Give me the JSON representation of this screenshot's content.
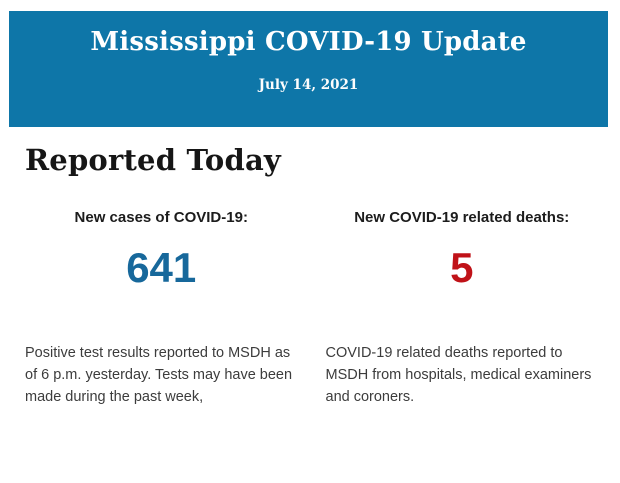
{
  "header": {
    "title": "Mississippi COVID-19 Update",
    "date": "July 14, 2021",
    "background_color": "#0e76a8",
    "text_color": "#ffffff"
  },
  "section": {
    "heading": "Reported Today"
  },
  "stats": [
    {
      "label": "New cases of COVID-19:",
      "value": "641",
      "value_color": "#17689b",
      "description": "Positive test results reported to MSDH as of 6 p.m. yesterday. Tests may have been made during the past week,"
    },
    {
      "label": "New COVID-19 related deaths:",
      "value": "5",
      "value_color": "#c01218",
      "description": "COVID-19 related deaths reported to MSDH from hospitals, medical examiners and coroners."
    }
  ]
}
